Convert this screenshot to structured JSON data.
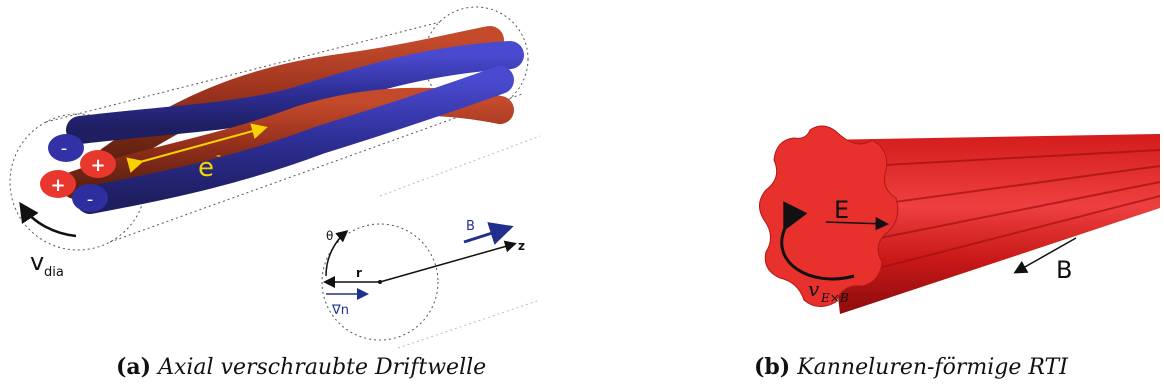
{
  "panel_a": {
    "caption_label": "(a)",
    "caption_text": "Axial verschraubte Driftwelle",
    "electron_label": "e",
    "electron_sup": "-",
    "minus_sign": "-",
    "plus_sign": "+",
    "vdia_main": "v",
    "vdia_sub": "dia",
    "axis_theta": "θ",
    "axis_r": "r",
    "axis_z": "z",
    "axis_B": "B",
    "grad_n": "∇n"
  },
  "panel_b": {
    "caption_label": "(b)",
    "caption_text": "Kanneluren-förmige RTI",
    "label_E": "E",
    "label_B": "B",
    "label_v": "v",
    "label_v_sub": "E×B"
  },
  "colors": {
    "blue_tube": "#3a3aa0",
    "red_tube": "#b03a22",
    "blob_red": "#e8372c",
    "flute_red": "#e02a2a",
    "electron_yellow": "#f5d200",
    "axis_navy": "#20308c"
  }
}
